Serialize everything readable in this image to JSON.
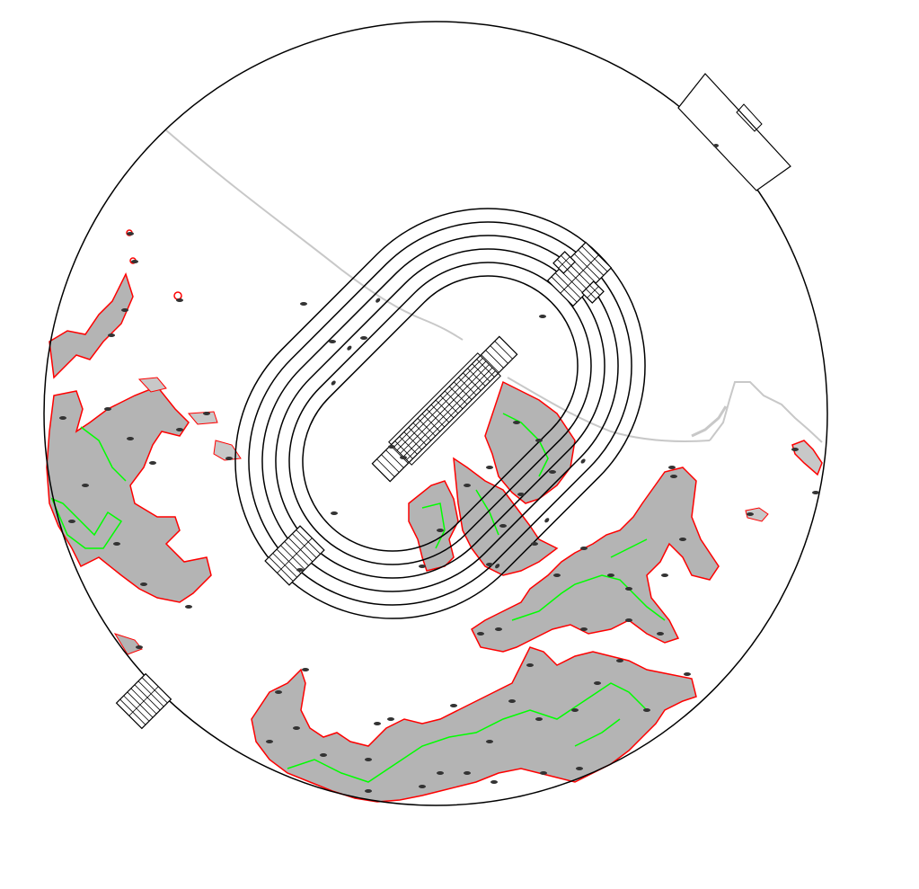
{
  "map": {
    "kind": "site-plan",
    "labels": [],
    "colors": {
      "background": "#ffffff",
      "boundary": "#000000",
      "track": "#000000",
      "road": "#c8c8c8",
      "contour": "#a9a9a9",
      "contour_outline": "#ff0000",
      "contour_highlight": "#00ff00",
      "point_marker": "#333333"
    },
    "layers": [
      "site-boundary",
      "running-track",
      "stadium-stands",
      "access-road",
      "terrain-contours",
      "survey-points"
    ]
  }
}
